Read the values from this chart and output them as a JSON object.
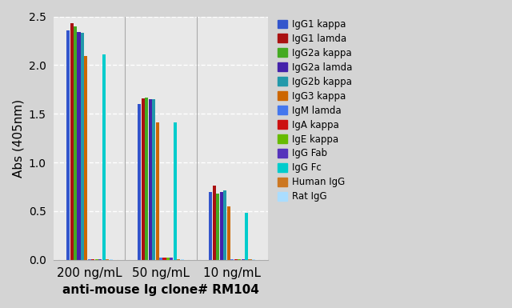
{
  "ylabel": "Abs (405nm)",
  "xlabel": "anti-mouse Ig clone# RM104",
  "groups": [
    "200 ng/mL",
    "50 ng/mL",
    "10 ng/mL"
  ],
  "series": [
    {
      "label": "IgG1 kappa",
      "color": "#3355cc",
      "values": [
        2.36,
        1.6,
        0.7
      ]
    },
    {
      "label": "IgG1 lamda",
      "color": "#aa1111",
      "values": [
        2.43,
        1.66,
        0.76
      ]
    },
    {
      "label": "IgG2a kappa",
      "color": "#44aa22",
      "values": [
        2.4,
        1.67,
        0.68
      ]
    },
    {
      "label": "IgG2a lamda",
      "color": "#4422aa",
      "values": [
        2.34,
        1.65,
        0.7
      ]
    },
    {
      "label": "IgG2b kappa",
      "color": "#2299aa",
      "values": [
        2.33,
        1.65,
        0.71
      ]
    },
    {
      "label": "IgG3 kappa",
      "color": "#cc6600",
      "values": [
        2.09,
        1.41,
        0.55
      ]
    },
    {
      "label": "IgM lamda",
      "color": "#4477ee",
      "values": [
        0.01,
        0.02,
        0.01
      ]
    },
    {
      "label": "IgA kappa",
      "color": "#cc1111",
      "values": [
        0.01,
        0.02,
        0.01
      ]
    },
    {
      "label": "IgE kappa",
      "color": "#66bb00",
      "values": [
        0.01,
        0.02,
        0.01
      ]
    },
    {
      "label": "IgG Fab",
      "color": "#5533bb",
      "values": [
        0.01,
        0.02,
        0.01
      ]
    },
    {
      "label": "IgG Fc",
      "color": "#00cccc",
      "values": [
        2.11,
        1.41,
        0.48
      ]
    },
    {
      "label": "Human IgG",
      "color": "#cc7722",
      "values": [
        0.01,
        0.01,
        0.01
      ]
    },
    {
      "label": "Rat IgG",
      "color": "#aaddff",
      "values": [
        0.01,
        0.01,
        0.01
      ]
    }
  ],
  "ylim": [
    0,
    2.5
  ],
  "yticks": [
    0,
    0.5,
    1.0,
    1.5,
    2.0,
    2.5
  ],
  "background_color": "#d4d4d4",
  "plot_bg_color": "#e8e8e8",
  "grid_color": "#ffffff",
  "figsize": [
    6.4,
    3.85
  ],
  "dpi": 100
}
